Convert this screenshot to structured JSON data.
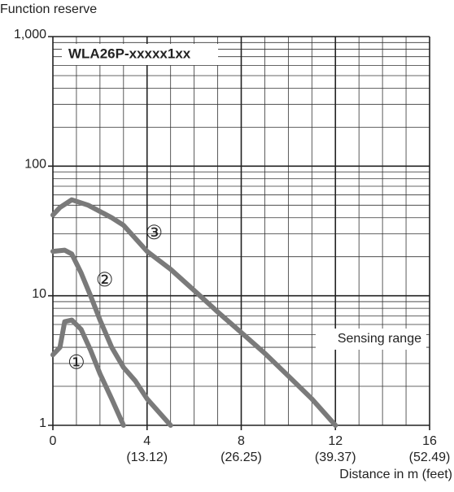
{
  "chart_data": {
    "type": "line",
    "title": "WLA26P-xxxxx1xx",
    "y_label": "Function reserve",
    "x_label": "Distance in m (feet)",
    "annotation": "Sensing range",
    "log_y": true,
    "grid": true,
    "xlim": [
      0,
      16
    ],
    "ylim": [
      1,
      1000
    ],
    "xticks": [
      0,
      4,
      8,
      12,
      16
    ],
    "x_secondary_labels": [
      null,
      "(13.12)",
      "(26.25)",
      "(39.37)",
      "(52.49)"
    ],
    "yticks": [
      1,
      10,
      100,
      {
        "value": 1000,
        "label": "1,000"
      }
    ],
    "series": [
      {
        "name": "①",
        "color": "#7a7a7a",
        "x": [
          0,
          0.3,
          0.5,
          0.8,
          1.2,
          1.6,
          2,
          2.5,
          3
        ],
        "values": [
          3.5,
          4,
          6.3,
          6.5,
          5.5,
          3.8,
          2.5,
          1.6,
          1
        ]
      },
      {
        "name": "②",
        "color": "#7a7a7a",
        "x": [
          0,
          0.5,
          0.8,
          1.2,
          1.6,
          2,
          2.5,
          3,
          3.5,
          4,
          5
        ],
        "values": [
          22,
          22.5,
          21,
          15,
          10,
          6.5,
          4,
          2.8,
          2.2,
          1.6,
          1
        ]
      },
      {
        "name": "③",
        "color": "#7a7a7a",
        "x": [
          0,
          0.3,
          0.8,
          1.5,
          2.5,
          3,
          4,
          5,
          6,
          7,
          8,
          9,
          10,
          11,
          12
        ],
        "values": [
          42,
          48,
          55,
          50,
          40,
          35,
          22,
          16,
          11,
          7.5,
          5.2,
          3.6,
          2.4,
          1.6,
          1
        ]
      }
    ]
  }
}
